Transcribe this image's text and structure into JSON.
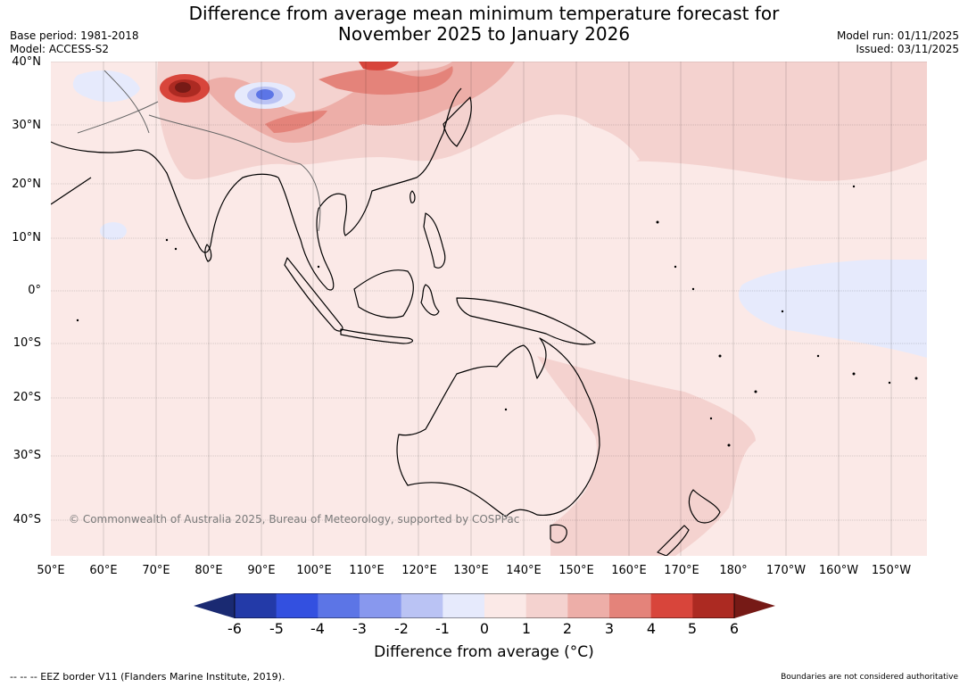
{
  "title": {
    "line1": "Difference from average mean minimum temperature forecast for",
    "line2": "November 2025 to January 2026"
  },
  "meta": {
    "base_period": "Base period: 1981-2018",
    "model": "Model: ACCESS-S2",
    "model_run": "Model run: 01/11/2025",
    "issued": "Issued: 03/11/2025"
  },
  "map": {
    "copyright": "© Commonwealth of Australia 2025, Bureau of Meteorology, supported by COSPPac",
    "lat_labels": [
      "40°N",
      "30°N",
      "20°N",
      "10°N",
      "0°",
      "10°S",
      "20°S",
      "30°S",
      "40°S"
    ],
    "lon_labels": [
      "50°E",
      "60°E",
      "70°E",
      "80°E",
      "90°E",
      "100°E",
      "110°E",
      "120°E",
      "130°E",
      "140°E",
      "150°E",
      "160°E",
      "170°E",
      "180°",
      "170°W",
      "160°W",
      "150°W"
    ]
  },
  "colorbar": {
    "label": "Difference from average (°C)",
    "ticks": [
      "-6",
      "-5",
      "-4",
      "-3",
      "-2",
      "-1",
      "0",
      "1",
      "2",
      "3",
      "4",
      "5",
      "6"
    ],
    "colors": {
      "below_min": "#1a2a72",
      "bins": [
        "#233aa8",
        "#3350e0",
        "#5c75e6",
        "#8898ee",
        "#bac3f4",
        "#e6eafc",
        "#fbe9e7",
        "#f4d2cf",
        "#edaea8",
        "#e4837a",
        "#d8453b",
        "#ac2a22"
      ],
      "above_max": "#761a16"
    }
  },
  "footer": {
    "eez": "--  --  -- EEZ border V11 (Flanders Marine Institute, 2019).",
    "boundaries": "Boundaries are not considered authoritative"
  }
}
